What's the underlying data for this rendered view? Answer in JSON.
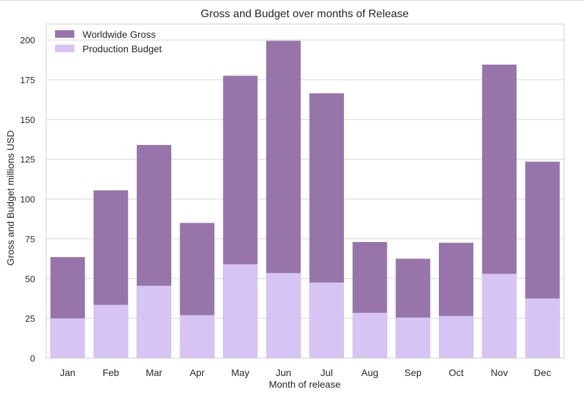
{
  "chart_data": {
    "type": "bar",
    "title": "Gross and Budget over months of Release",
    "xlabel": "Month of release",
    "ylabel": "Gross and Budget millions USD",
    "categories": [
      "Jan",
      "Feb",
      "Mar",
      "Apr",
      "May",
      "Jun",
      "Jul",
      "Aug",
      "Sep",
      "Oct",
      "Nov",
      "Dec"
    ],
    "series": [
      {
        "name": "Worldwide Gross",
        "color": "#9775aa",
        "values": [
          63.5,
          105.5,
          134,
          85,
          177.5,
          199.5,
          166.5,
          73,
          62.5,
          72.5,
          184.5,
          123.5
        ]
      },
      {
        "name": "Production Budget",
        "color": "#d6c4f4",
        "values": [
          25,
          33.5,
          45.5,
          27,
          59,
          53.5,
          47.5,
          28.5,
          25.5,
          26.5,
          53,
          37.5
        ]
      }
    ],
    "ylim": [
      0,
      210
    ],
    "yticks": [
      0,
      25,
      50,
      75,
      100,
      125,
      150,
      175,
      200
    ],
    "grid": "horizontal",
    "legend_position": "top-left",
    "overlay": true
  }
}
